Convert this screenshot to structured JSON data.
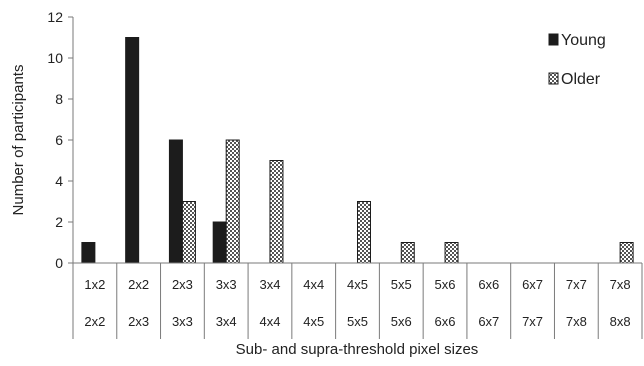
{
  "chart_data": {
    "type": "bar",
    "categories_row1": [
      "1x2",
      "2x2",
      "2x3",
      "3x3",
      "3x4",
      "4x4",
      "4x5",
      "5x5",
      "5x6",
      "6x6",
      "6x7",
      "7x7",
      "7x8"
    ],
    "categories_row2": [
      "2x2",
      "2x3",
      "3x3",
      "3x4",
      "4x4",
      "4x5",
      "5x5",
      "5x6",
      "6x6",
      "6x7",
      "7x7",
      "7x8",
      "8x8"
    ],
    "series": [
      {
        "name": "Young",
        "values": [
          1,
          11,
          6,
          2,
          0,
          0,
          0,
          0,
          0,
          0,
          0,
          0,
          0
        ],
        "color": "#1c1c1c",
        "pattern": "solid"
      },
      {
        "name": "Older",
        "values": [
          0,
          0,
          3,
          6,
          5,
          0,
          3,
          1,
          1,
          0,
          0,
          0,
          1
        ],
        "color": "#888888",
        "pattern": "checker"
      }
    ],
    "title": "",
    "xlabel": "Sub- and supra-threshold pixel sizes",
    "ylabel": "Number of participants",
    "ylim": [
      0,
      12
    ],
    "yticks": [
      0,
      2,
      4,
      6,
      8,
      10,
      12
    ],
    "grid": false,
    "legend_position": "top-right"
  }
}
